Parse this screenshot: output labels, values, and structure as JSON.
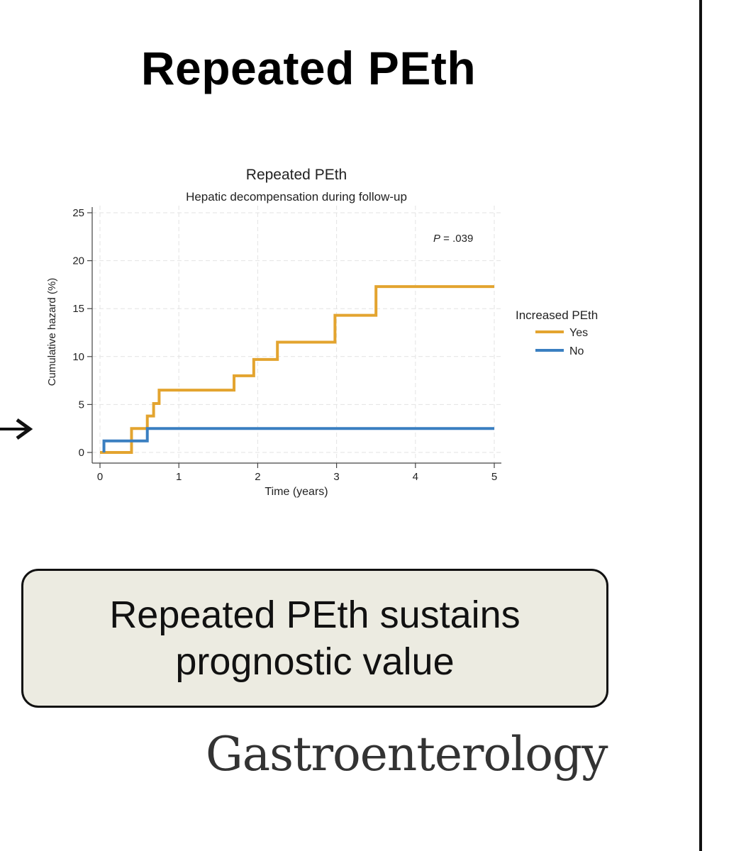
{
  "slide_title": "Repeated PEth",
  "summary_text": "Repeated PEth sustains prognostic value",
  "journal_name": "Gastroenterology",
  "arrow_icon": "right-arrow-icon",
  "colors": {
    "yes": "#E3A42F",
    "no": "#3A7FC1"
  },
  "chart_data": {
    "type": "line",
    "subtype": "step",
    "title": "Repeated PEth",
    "subtitle": "Hepatic decompensation during follow-up",
    "xlabel": "Time (years)",
    "ylabel": "Cumulative hazard (%)",
    "xlim": [
      0,
      5
    ],
    "ylim": [
      0,
      25
    ],
    "xticks": [
      0,
      1,
      2,
      3,
      4,
      5
    ],
    "yticks": [
      0,
      5,
      10,
      15,
      20,
      25
    ],
    "grid": true,
    "annotation": {
      "label": "P",
      "text": " = .039"
    },
    "legend": {
      "title": "Increased PEth",
      "position": "right"
    },
    "series": [
      {
        "name": "Yes",
        "color": "#E3A42F",
        "x": [
          0,
          0.4,
          0.6,
          0.68,
          0.75,
          1.7,
          1.95,
          2.25,
          2.98,
          3.5,
          5
        ],
        "y": [
          0,
          2.5,
          3.8,
          5.1,
          6.5,
          8.0,
          9.7,
          11.5,
          14.3,
          17.3,
          17.3
        ]
      },
      {
        "name": "No",
        "color": "#3A7FC1",
        "x": [
          0.05,
          0.6,
          5
        ],
        "y": [
          1.2,
          2.5,
          2.5
        ]
      }
    ]
  }
}
